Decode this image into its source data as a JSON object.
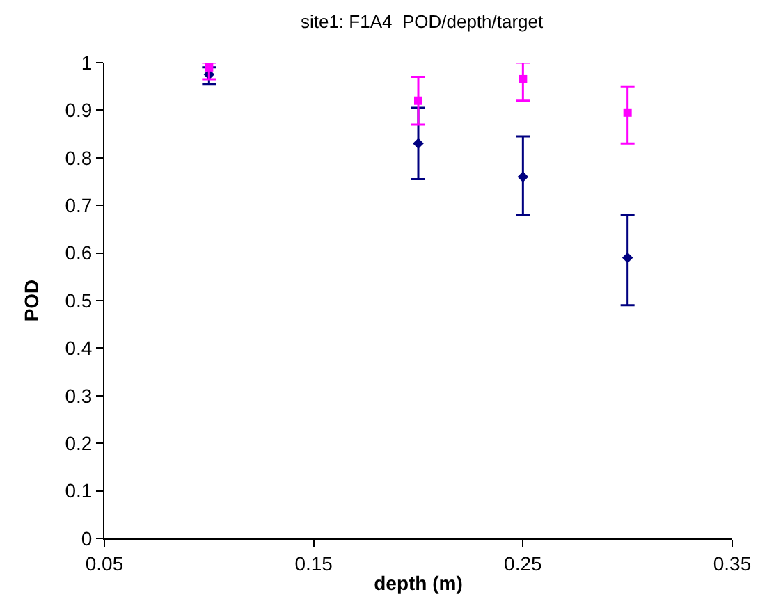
{
  "chart_data": {
    "type": "scatter",
    "title": "site1: F1A4  POD/depth/target",
    "xlabel": "depth (m)",
    "ylabel": "POD",
    "xlim": [
      0.05,
      0.35
    ],
    "xticks": [
      0.05,
      0.15,
      0.25,
      0.35
    ],
    "ylim": [
      0,
      1
    ],
    "yticks": [
      0,
      0.1,
      0.2,
      0.3,
      0.4,
      0.5,
      0.6,
      0.7,
      0.8,
      0.9,
      1
    ],
    "legend": false,
    "series": [
      {
        "color": "#000080",
        "marker": "diamond",
        "x": [
          0.1,
          0.2,
          0.25,
          0.3
        ],
        "values": [
          0.975,
          0.83,
          0.76,
          0.59
        ],
        "errors": [
          [
            0.955,
            0.99
          ],
          [
            0.755,
            0.905
          ],
          [
            0.68,
            0.845
          ],
          [
            0.49,
            0.68
          ]
        ]
      },
      {
        "color": "#ff00ff",
        "marker": "square",
        "x": [
          0.1,
          0.2,
          0.25,
          0.3
        ],
        "values": [
          0.99,
          0.92,
          0.965,
          0.895
        ],
        "errors": [
          [
            0.965,
            1.0
          ],
          [
            0.87,
            0.97
          ],
          [
            0.92,
            1.0
          ],
          [
            0.83,
            0.95
          ]
        ]
      }
    ]
  }
}
